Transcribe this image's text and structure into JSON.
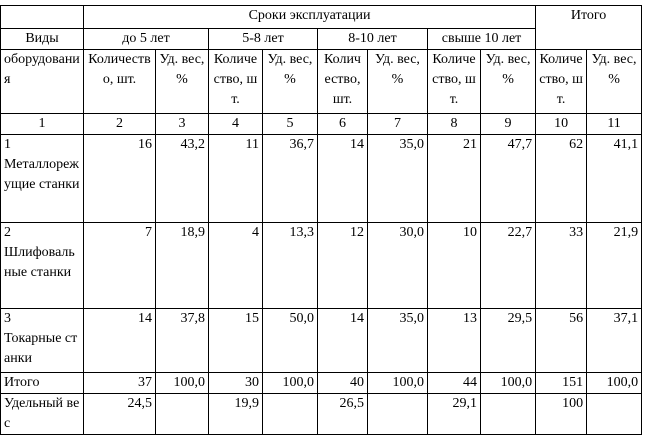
{
  "header": {
    "group_title": "Сроки эксплуатации",
    "total": "Итого",
    "kind": [
      "Виды",
      "оборудования"
    ],
    "periods": [
      "до 5 лет",
      "5-8 лет",
      "8-10 лет",
      "свыше 10 лет"
    ],
    "subheaders": [
      "Количество, шт.",
      "Уд. вес, %",
      "Количество, шт.",
      "Уд. вес, %",
      "Количество, шт.",
      "Уд. вес, %",
      "Количество, шт.",
      "Уд. вес, %",
      "Количество, шт.",
      "Уд. вес, %"
    ],
    "column_numbers": [
      "1",
      "2",
      "3",
      "4",
      "5",
      "6",
      "7",
      "8",
      "9",
      "10",
      "11"
    ]
  },
  "table": {
    "rows": [
      {
        "number": "1",
        "label": "Металлорежущие станки",
        "cells": [
          "16",
          "43,2",
          "11",
          "36,7",
          "14",
          "35,0",
          "21",
          "47,7",
          "62",
          "41,1"
        ]
      },
      {
        "number": "2",
        "label": "Шлифовальные станки",
        "cells": [
          "7",
          "18,9",
          "4",
          "13,3",
          "12",
          "30,0",
          "10",
          "22,7",
          "33",
          "21,9"
        ]
      },
      {
        "number": "3",
        "label": "Токарные станки",
        "cells": [
          "14",
          "37,8",
          "15",
          "50,0",
          "14",
          "35,0",
          "13",
          "29,5",
          "56",
          "37,1"
        ]
      },
      {
        "label": "Итого",
        "cells": [
          "37",
          "100,0",
          "30",
          "100,0",
          "40",
          "100,0",
          "44",
          "100,0",
          "151",
          "100,0"
        ]
      },
      {
        "label": "Удельный вес",
        "cells": [
          "24,5",
          null,
          "19,9",
          null,
          "26,5",
          null,
          "29,1",
          null,
          "100",
          null
        ]
      }
    ]
  }
}
